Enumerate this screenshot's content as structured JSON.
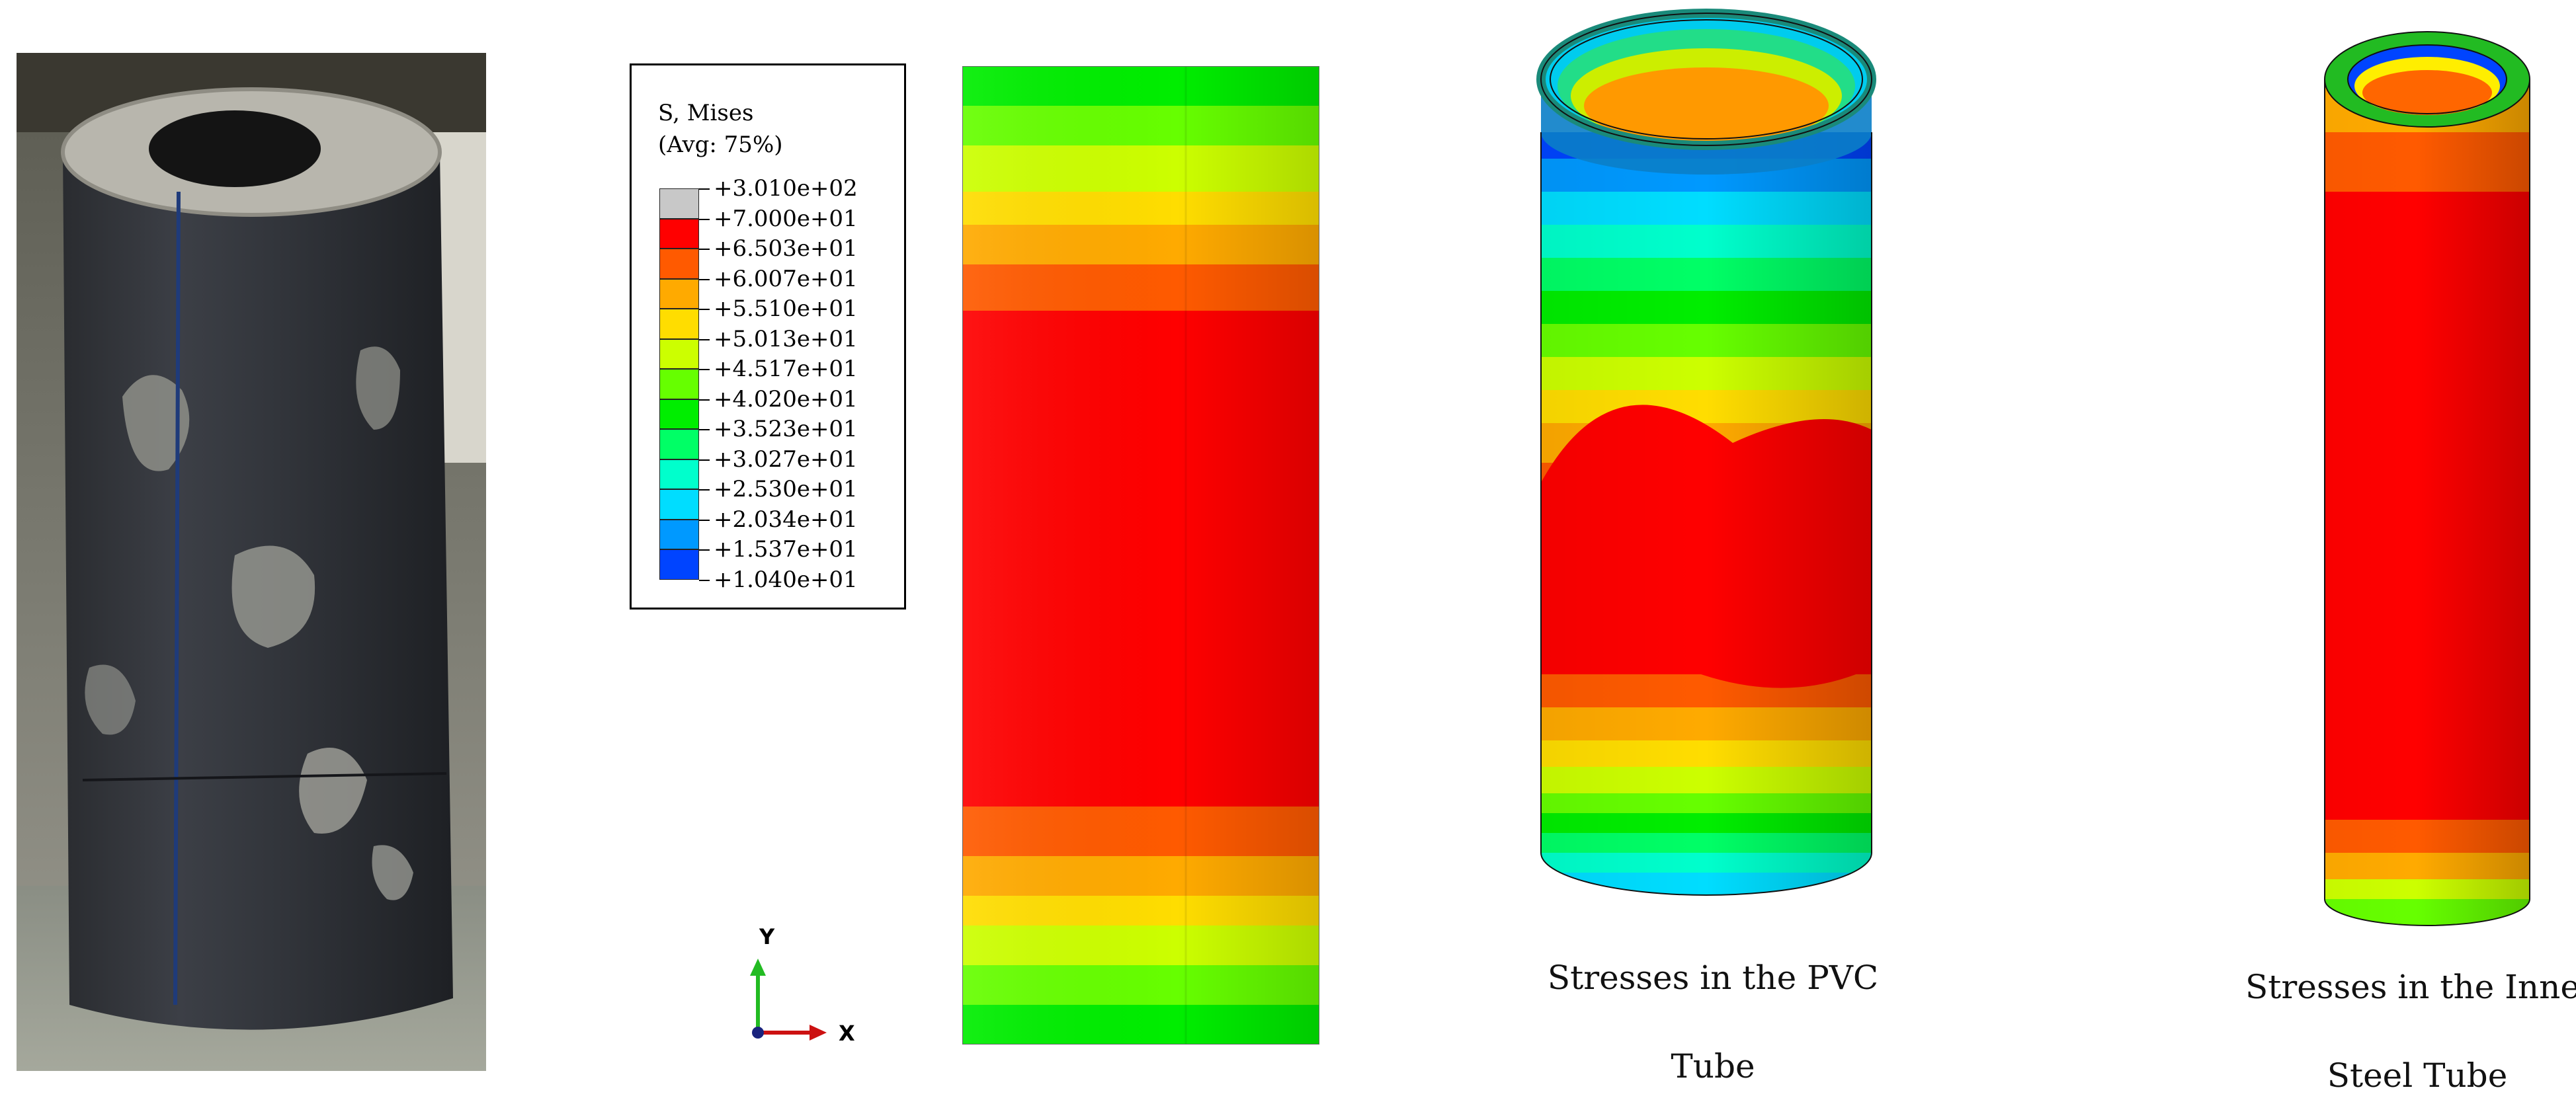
{
  "photo": {
    "alt_icon": "concrete-filled-pvc-specimen-photo"
  },
  "legend": {
    "title": "S, Mises",
    "subtitle": "(Avg: 75%)",
    "levels": [
      {
        "label": "+3.010e+02",
        "color": "#c8c8c8"
      },
      {
        "label": "+7.000e+01",
        "color": "#ff0000"
      },
      {
        "label": "+6.503e+01",
        "color": "#ff5a00"
      },
      {
        "label": "+6.007e+01",
        "color": "#ffaa00"
      },
      {
        "label": "+5.510e+01",
        "color": "#ffdd00"
      },
      {
        "label": "+5.013e+01",
        "color": "#ccff00"
      },
      {
        "label": "+4.517e+01",
        "color": "#66ff00"
      },
      {
        "label": "+4.020e+01",
        "color": "#00ee00"
      },
      {
        "label": "+3.523e+01",
        "color": "#00ff66"
      },
      {
        "label": "+3.027e+01",
        "color": "#00ffcc"
      },
      {
        "label": "+2.530e+01",
        "color": "#00ddff"
      },
      {
        "label": "+2.034e+01",
        "color": "#0099ff"
      },
      {
        "label": "+1.537e+01",
        "color": "#0044ff"
      },
      {
        "label": "+1.040e+01",
        "color": "#0000ff"
      }
    ]
  },
  "triad": {
    "y_label": "Y",
    "x_label": "X",
    "y_color": "#22bb22",
    "x_color": "#cc1111",
    "origin_color": "#1a237e"
  },
  "captions": {
    "pvc_line1": "Stresses in the PVC",
    "pvc_line2": "Tube",
    "steel_line1": "Stresses in the Inner",
    "steel_line2": "Steel Tube"
  }
}
